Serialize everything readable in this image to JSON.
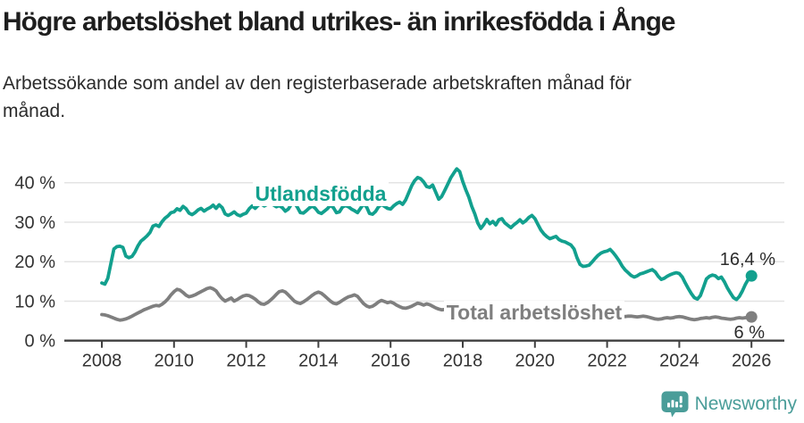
{
  "header": {
    "title": "Högre arbetslöshet bland utrikes- än inrikesfödda i Ånge",
    "subtitle": "Arbetssökande som andel av den registerbaserade arbetskraften månad för månad."
  },
  "footer": {
    "brand": "Newsworthy",
    "logo_icon": "bar-chart-speech-bubble-icon"
  },
  "colors": {
    "teal": "#12a08e",
    "gray": "#7f7f7f",
    "axis": "#404040",
    "grid": "#e3e3e3",
    "tick_text": "#333333",
    "value_label_text": "#2b2b2b",
    "brand_teal": "#4a9d99",
    "label_bg": "#ffffff"
  },
  "chart_data": {
    "type": "line",
    "title": "",
    "xlabel": "",
    "ylabel": "",
    "x_start": "2008-01",
    "x_end": "2026-01",
    "x_interval": "monthly",
    "xlim": [
      2007.0,
      2027.0
    ],
    "ylim": [
      0,
      45
    ],
    "grid": "horizontal",
    "x_ticks": {
      "values": [
        2008,
        2010,
        2012,
        2014,
        2016,
        2018,
        2020,
        2022,
        2024,
        2026
      ],
      "labels": [
        "2008",
        "2010",
        "2012",
        "2014",
        "2016",
        "2018",
        "2020",
        "2022",
        "2024",
        "2026"
      ]
    },
    "y_ticks": {
      "values": [
        0,
        10,
        20,
        30,
        40
      ],
      "labels": [
        "0 %",
        "10 %",
        "20 %",
        "30 %",
        "40 %"
      ]
    },
    "series": [
      {
        "name": "Utlandsfödda",
        "color": "#12a08e",
        "end_label": "16,4 %",
        "end_value": 16.4,
        "values": [
          14.6,
          14.3,
          15.8,
          19.5,
          23.2,
          23.8,
          23.9,
          23.6,
          21.4,
          21.0,
          21.3,
          22.4,
          24.0,
          25.2,
          25.8,
          26.5,
          27.4,
          29.0,
          29.3,
          28.9,
          30.1,
          31.0,
          31.6,
          32.4,
          32.6,
          33.4,
          33.0,
          34.0,
          33.4,
          32.3,
          31.9,
          32.4,
          33.1,
          33.5,
          32.8,
          33.3,
          33.7,
          34.3,
          33.5,
          34.4,
          33.7,
          32.1,
          31.7,
          32.1,
          32.6,
          31.9,
          31.6,
          32.0,
          32.3,
          33.4,
          34.1,
          33.5,
          34.3,
          34.6,
          34.1,
          34.5,
          34.9,
          34.4,
          33.9,
          34.2,
          33.7,
          32.8,
          33.3,
          34.5,
          34.9,
          33.8,
          32.4,
          32.3,
          32.9,
          33.6,
          34.1,
          33.5,
          32.5,
          32.2,
          32.8,
          33.4,
          34.3,
          33.7,
          32.4,
          32.6,
          33.8,
          34.2,
          33.9,
          33.3,
          32.9,
          32.4,
          33.5,
          34.6,
          33.9,
          32.2,
          32.0,
          32.7,
          33.9,
          34.5,
          34.0,
          33.5,
          33.3,
          34.1,
          34.7,
          35.1,
          34.5,
          35.6,
          37.4,
          39.2,
          40.5,
          41.3,
          41.0,
          40.2,
          39.0,
          38.8,
          39.4,
          37.6,
          35.8,
          36.5,
          38.0,
          39.6,
          41.2,
          42.4,
          43.5,
          42.8,
          40.3,
          38.2,
          36.4,
          34.0,
          32.1,
          29.8,
          28.4,
          29.4,
          30.7,
          29.6,
          30.2,
          29.3,
          30.6,
          30.9,
          29.8,
          29.2,
          28.6,
          29.3,
          29.9,
          30.6,
          29.8,
          30.4,
          31.2,
          31.7,
          30.9,
          29.4,
          28.0,
          27.0,
          26.3,
          25.8,
          26.1,
          26.4,
          25.6,
          25.2,
          25.0,
          24.6,
          24.2,
          23.2,
          21.0,
          19.3,
          18.8,
          18.9,
          19.1,
          19.9,
          20.8,
          21.6,
          22.2,
          22.5,
          22.7,
          23.1,
          22.3,
          21.3,
          20.2,
          18.9,
          17.9,
          17.2,
          16.5,
          16.1,
          16.4,
          16.9,
          17.1,
          17.4,
          17.7,
          18.0,
          17.4,
          16.3,
          15.5,
          15.8,
          16.3,
          16.7,
          17.0,
          17.2,
          17.0,
          16.1,
          14.6,
          13.2,
          11.9,
          10.9,
          10.5,
          11.4,
          13.4,
          15.6,
          16.3,
          16.6,
          16.4,
          15.7,
          16.1,
          14.9,
          13.3,
          12.1,
          10.9,
          10.4,
          11.2,
          12.6,
          14.3,
          15.6,
          16.4
        ]
      },
      {
        "name": "Total arbetslöshet",
        "color": "#7f7f7f",
        "end_label": "6 %",
        "end_value": 6.0,
        "values": [
          6.6,
          6.5,
          6.3,
          6.0,
          5.7,
          5.4,
          5.2,
          5.3,
          5.5,
          5.8,
          6.2,
          6.6,
          7.0,
          7.4,
          7.8,
          8.1,
          8.4,
          8.7,
          8.9,
          8.8,
          9.2,
          9.8,
          10.6,
          11.6,
          12.4,
          13.0,
          12.8,
          12.2,
          11.5,
          11.1,
          11.3,
          11.6,
          12.0,
          12.4,
          12.8,
          13.2,
          13.4,
          13.1,
          12.6,
          11.5,
          10.6,
          10.0,
          10.4,
          10.8,
          10.0,
          10.4,
          10.9,
          11.3,
          11.5,
          11.4,
          11.0,
          10.5,
          9.8,
          9.3,
          9.2,
          9.6,
          10.2,
          10.9,
          11.7,
          12.4,
          12.6,
          12.3,
          11.6,
          10.8,
          10.0,
          9.6,
          9.4,
          9.8,
          10.3,
          10.9,
          11.5,
          12.0,
          12.3,
          12.0,
          11.4,
          10.7,
          10.0,
          9.5,
          9.3,
          9.7,
          10.2,
          10.7,
          11.1,
          11.3,
          11.6,
          11.2,
          10.3,
          9.4,
          8.8,
          8.5,
          8.7,
          9.2,
          9.8,
          10.2,
          9.9,
          9.6,
          9.8,
          9.5,
          9.0,
          8.6,
          8.3,
          8.2,
          8.4,
          8.7,
          9.1,
          9.5,
          9.3,
          9.0,
          9.3,
          9.1,
          8.7,
          8.3,
          8.0,
          7.8,
          7.9,
          8.2,
          8.5,
          8.8,
          8.6,
          8.9,
          8.8,
          8.6,
          8.2,
          7.8,
          7.5,
          7.3,
          7.4,
          7.7,
          8.0,
          8.2,
          8.0,
          8.3,
          8.2,
          8.0,
          7.7,
          7.4,
          7.2,
          7.1,
          7.2,
          7.5,
          7.7,
          7.9,
          7.8,
          8.0,
          8.1,
          8.0,
          8.3,
          8.6,
          8.8,
          8.7,
          8.5,
          8.3,
          8.1,
          7.9,
          7.7,
          7.8,
          7.9,
          7.7,
          7.4,
          7.2,
          7.0,
          6.9,
          7.0,
          7.1,
          7.0,
          6.9,
          6.8,
          6.9,
          6.8,
          6.7,
          6.5,
          6.4,
          6.3,
          6.2,
          6.1,
          6.2,
          6.2,
          6.1,
          6.0,
          6.1,
          6.2,
          6.1,
          5.9,
          5.7,
          5.5,
          5.4,
          5.5,
          5.7,
          5.8,
          5.7,
          5.8,
          6.0,
          6.1,
          6.0,
          5.8,
          5.6,
          5.4,
          5.3,
          5.4,
          5.6,
          5.7,
          5.8,
          5.7,
          5.9,
          6.0,
          5.9,
          5.7,
          5.6,
          5.5,
          5.4,
          5.5,
          5.7,
          5.8,
          5.7,
          5.8,
          5.9,
          6.0
        ]
      }
    ],
    "legend_position": "inline-labels"
  }
}
